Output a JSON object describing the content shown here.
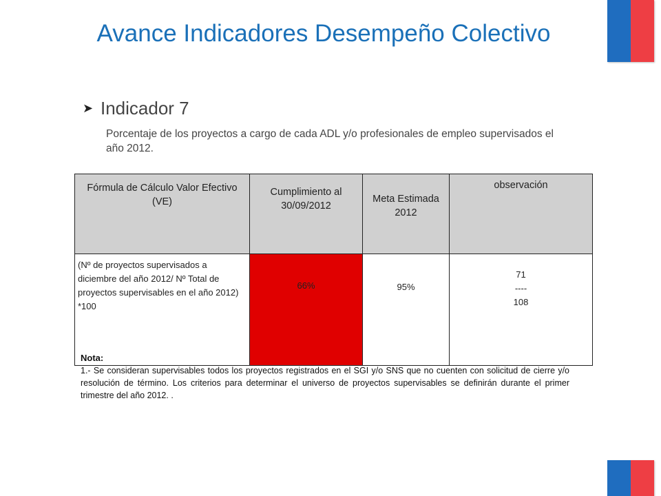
{
  "colors": {
    "flag_blue": "#1f6dbf",
    "flag_red": "#ee3e44",
    "title": "#1a70b8",
    "fail_cell": "#e00000",
    "header_bg": "#d0d0d0"
  },
  "title": "Avance Indicadores Desempeño Colectivo",
  "indicator": {
    "label": "Indicador 7",
    "description": "Porcentaje de los  proyectos a cargo de cada ADL y/o profesionales de empleo supervisados el año 2012."
  },
  "table": {
    "headers": {
      "formula": "Fórmula de Cálculo Valor Efectivo  (VE)",
      "cumplimiento": "Cumplimiento al 30/09/2012",
      "meta": "Meta Estimada 2012",
      "observacion": "observación"
    },
    "row": {
      "formula": "(Nº de proyectos supervisados a diciembre del  año 2012/ Nº Total de proyectos supervisables en el año 2012) *100",
      "cumplimiento": "66%",
      "meta": "95%",
      "obs_numerator": "71",
      "obs_divider": "----",
      "obs_denominator": "108"
    }
  },
  "note": {
    "title": "Nota:",
    "text": "1.-   Se consideran  supervisables todos los proyectos registrados en el SGI y/o SNS que no cuenten con solicitud de cierre y/o resolución de término. Los criterios para determinar el universo de proyectos supervisables se definirán durante el primer trimestre del año 2012. ."
  }
}
